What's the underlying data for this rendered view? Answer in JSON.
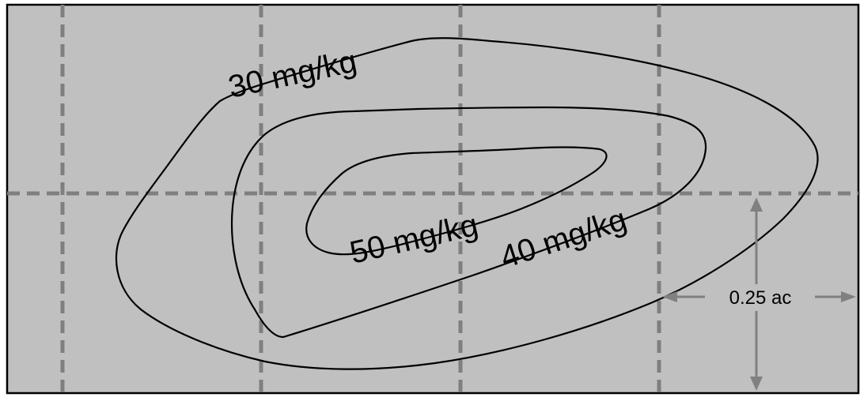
{
  "contours": [
    {
      "label": "30 mg/kg",
      "concentration": 30
    },
    {
      "label": "40 mg/kg",
      "concentration": 40
    },
    {
      "label": "50 mg/kg",
      "concentration": 50
    }
  ],
  "grid_cell": {
    "label": "0.25 ac"
  },
  "colors": {
    "background": "#c0c0c0",
    "grid": "#7f7f7f",
    "contour": "#000000",
    "dimension_arrow": "#808080"
  }
}
